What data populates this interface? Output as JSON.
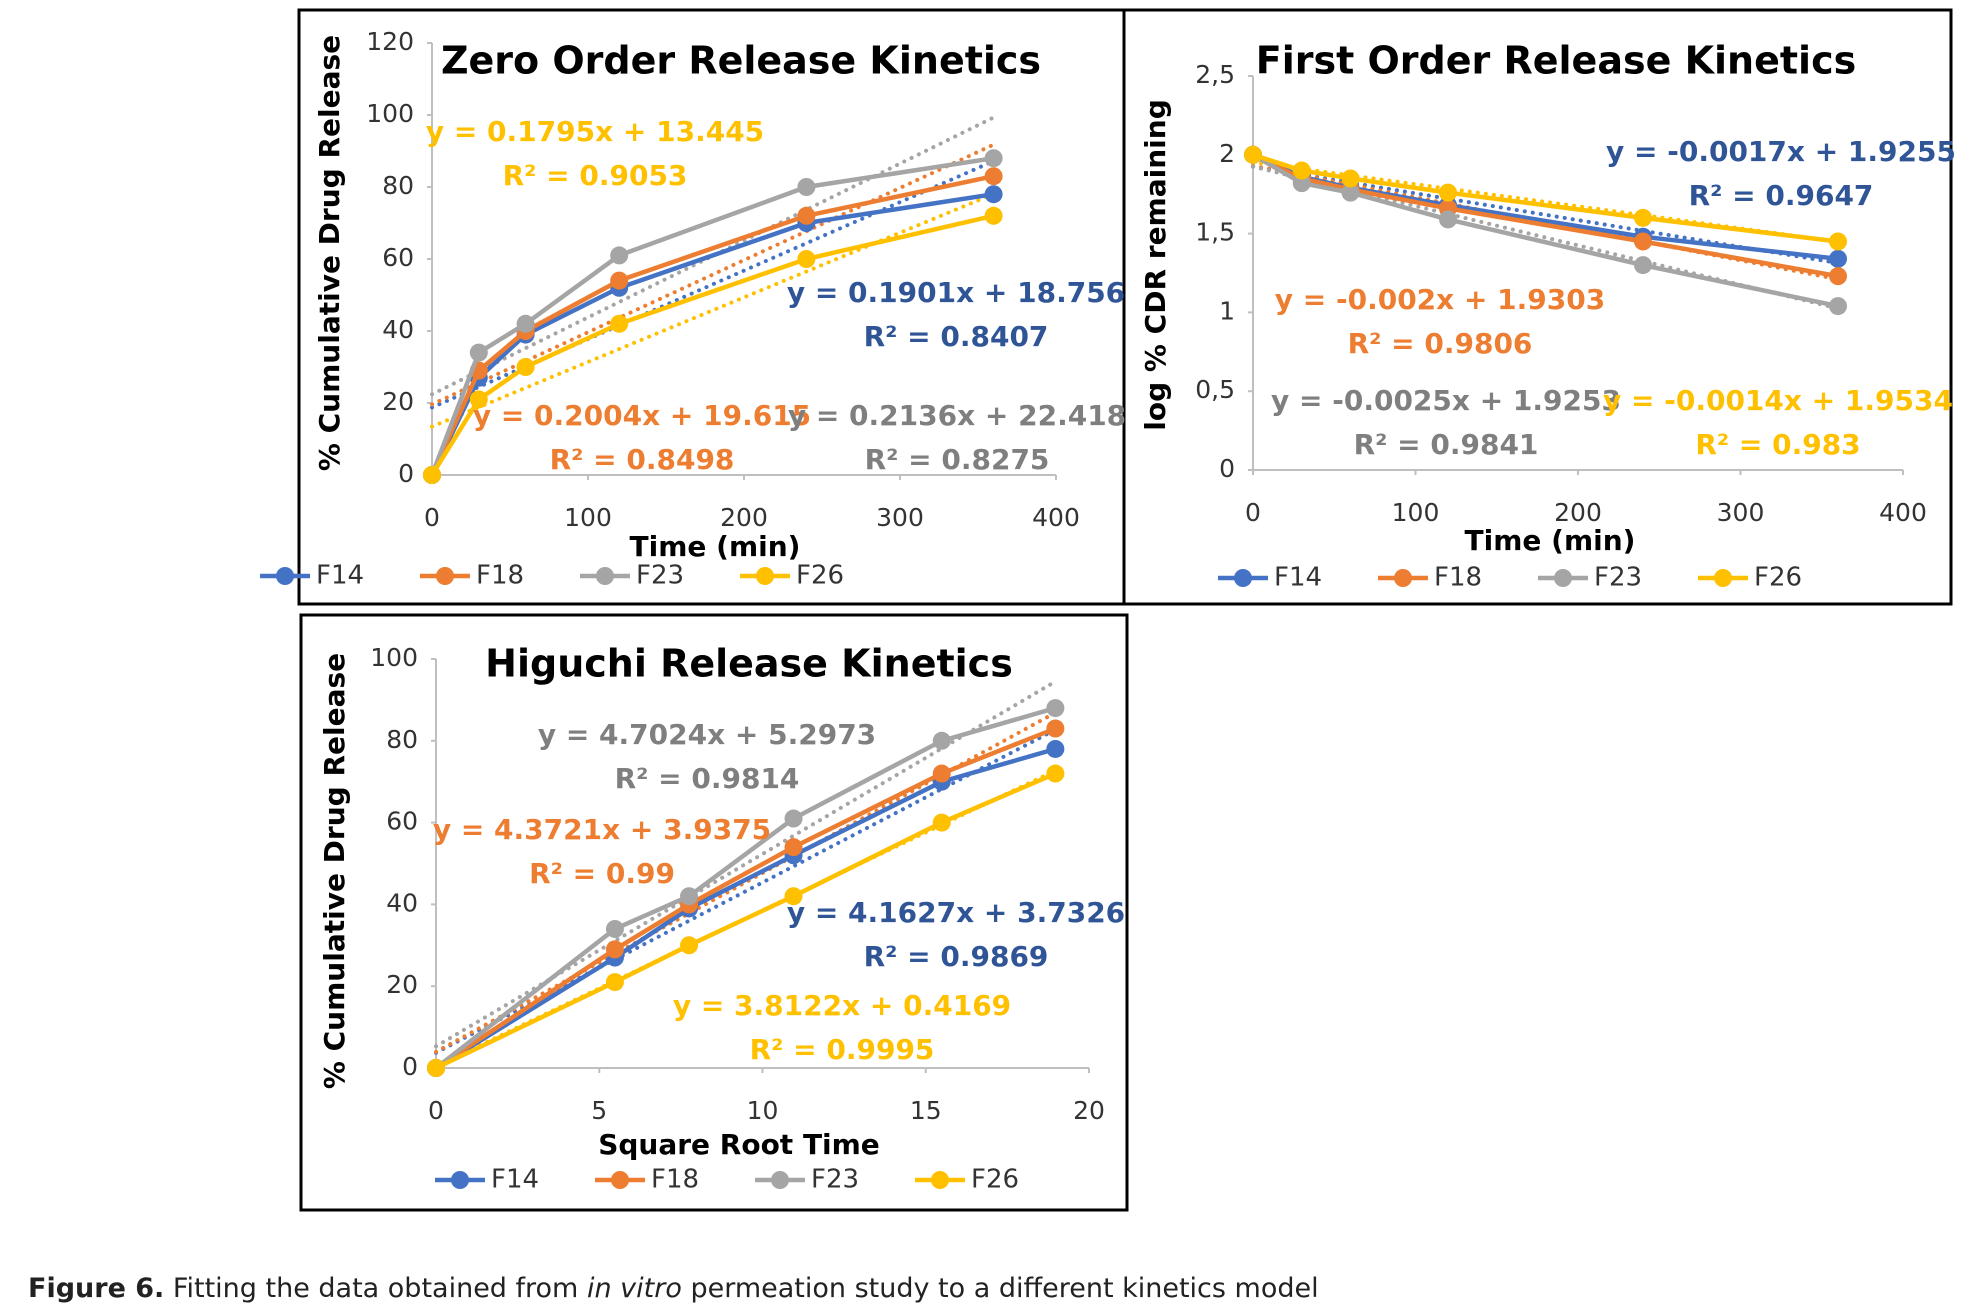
{
  "chart_data": [
    {
      "type": "line",
      "title": "Zero Order Release Kinetics",
      "x_label": "Time (min)",
      "y_label": "% Cumulative Drug Release",
      "x": [
        0,
        30,
        60,
        120,
        240,
        360
      ],
      "xlim": [
        0,
        400
      ],
      "xticks": [
        0,
        100,
        200,
        300,
        400
      ],
      "ylim": [
        0,
        120
      ],
      "yticks": [
        0,
        20,
        40,
        60,
        80,
        100,
        120
      ],
      "series": [
        {
          "name": "F14",
          "color": "#4472c4",
          "label_color": "#2f5597",
          "values": [
            0,
            27,
            39,
            52,
            70,
            78
          ],
          "trend": {
            "slope": 0.1901,
            "intercept": 18.756,
            "equation": "y = 0.1901x + 18.756",
            "r2": "R² = 0.8407"
          }
        },
        {
          "name": "F18",
          "color": "#ed7d31",
          "label_color": "#ed7d31",
          "values": [
            0,
            29,
            40,
            54,
            72,
            83
          ],
          "trend": {
            "slope": 0.2004,
            "intercept": 19.615,
            "equation": "y = 0.2004x + 19.615",
            "r2": "R² = 0.8498"
          }
        },
        {
          "name": "F23",
          "color": "#a5a5a5",
          "label_color": "#7f7f7f",
          "values": [
            0,
            34,
            42,
            61,
            80,
            88
          ],
          "trend": {
            "slope": 0.2136,
            "intercept": 22.418,
            "equation": "y = 0.2136x + 22.418",
            "r2": "R² = 0.8275"
          }
        },
        {
          "name": "F26",
          "color": "#ffc000",
          "label_color": "#ffc000",
          "values": [
            0,
            21,
            30,
            42,
            60,
            72
          ],
          "trend": {
            "slope": 0.1795,
            "intercept": 13.445,
            "equation": "y = 0.1795x + 13.445",
            "r2": "R² = 0.9053"
          }
        }
      ]
    },
    {
      "type": "line",
      "title": "First Order Release Kinetics",
      "x_label": "Time (min)",
      "y_label": "log % CDR remaining",
      "x": [
        0,
        30,
        60,
        120,
        240,
        360
      ],
      "xlim": [
        0,
        400
      ],
      "xticks": [
        0,
        100,
        200,
        300,
        400
      ],
      "ylim": [
        0,
        2.5
      ],
      "yticks": [
        0,
        {
          "value": 0.5,
          "label": "0,5"
        },
        1,
        {
          "value": 1.5,
          "label": "1,5"
        },
        2,
        {
          "value": 2.5,
          "label": "2,5"
        }
      ],
      "series": [
        {
          "name": "F14",
          "color": "#4472c4",
          "label_color": "#2f5597",
          "values": [
            2,
            1.86,
            1.79,
            1.68,
            1.48,
            1.34
          ],
          "trend": {
            "slope": -0.0017,
            "intercept": 1.9255,
            "equation": "y = -0.0017x + 1.9255",
            "r2": "R² = 0.9647"
          }
        },
        {
          "name": "F18",
          "color": "#ed7d31",
          "label_color": "#ed7d31",
          "values": [
            2,
            1.85,
            1.78,
            1.66,
            1.45,
            1.23
          ],
          "trend": {
            "slope": -0.002,
            "intercept": 1.9303,
            "equation": "y = -0.002x + 1.9303",
            "r2": "R² = 0.9806"
          }
        },
        {
          "name": "F23",
          "color": "#a5a5a5",
          "label_color": "#7f7f7f",
          "values": [
            2,
            1.82,
            1.76,
            1.59,
            1.3,
            1.04
          ],
          "trend": {
            "slope": -0.0025,
            "intercept": 1.9253,
            "equation": "y = -0.0025x + 1.9253",
            "r2": "R² = 0.9841"
          }
        },
        {
          "name": "F26",
          "color": "#ffc000",
          "label_color": "#ffc000",
          "values": [
            2,
            1.9,
            1.85,
            1.76,
            1.6,
            1.45
          ],
          "trend": {
            "slope": -0.0014,
            "intercept": 1.9534,
            "equation": "y = -0.0014x + 1.9534",
            "r2": "R² = 0.983"
          }
        }
      ]
    },
    {
      "type": "line",
      "title": "Higuchi Release Kinetics",
      "x_label": "Square Root Time",
      "y_label": "% Cumulative Drug Release",
      "x": [
        0,
        5.48,
        7.75,
        10.95,
        15.49,
        18.97
      ],
      "xlim": [
        0,
        20
      ],
      "xticks": [
        0,
        5,
        10,
        15,
        20
      ],
      "ylim": [
        0,
        100
      ],
      "yticks": [
        0,
        20,
        40,
        60,
        80,
        100
      ],
      "series": [
        {
          "name": "F14",
          "color": "#4472c4",
          "label_color": "#2f5597",
          "values": [
            0,
            27,
            39,
            52,
            70,
            78
          ],
          "trend": {
            "slope": 4.1627,
            "intercept": 3.7326,
            "equation": "y = 4.1627x + 3.7326",
            "r2": "R² = 0.9869"
          }
        },
        {
          "name": "F18",
          "color": "#ed7d31",
          "label_color": "#ed7d31",
          "values": [
            0,
            29,
            40,
            54,
            72,
            83
          ],
          "trend": {
            "slope": 4.3721,
            "intercept": 3.9375,
            "equation": "y = 4.3721x + 3.9375",
            "r2": "R² = 0.99"
          }
        },
        {
          "name": "F23",
          "color": "#a5a5a5",
          "label_color": "#7f7f7f",
          "values": [
            0,
            34,
            42,
            61,
            80,
            88
          ],
          "trend": {
            "slope": 4.7024,
            "intercept": 5.2973,
            "equation": "y = 4.7024x + 5.2973",
            "r2": "R² = 0.9814"
          }
        },
        {
          "name": "F26",
          "color": "#ffc000",
          "label_color": "#ffc000",
          "values": [
            0,
            21,
            30,
            42,
            60,
            72
          ],
          "trend": {
            "slope": 3.8122,
            "intercept": 0.4169,
            "equation": "y = 3.8122x + 0.4169",
            "r2": "R² = 0.9995"
          }
        }
      ]
    }
  ],
  "caption": {
    "label": "Figure 6.",
    "text_before": "Fitting the data obtained from",
    "italic": "in vitro",
    "text_after": "permeation study to a different kinetics model"
  }
}
